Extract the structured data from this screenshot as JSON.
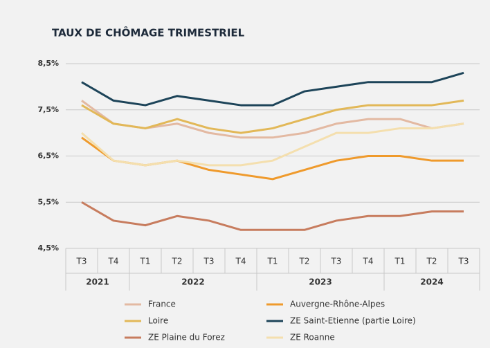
{
  "chart_data": {
    "type": "line",
    "title": "TAUX DE CHÔMAGE TRIMESTRIEL",
    "groups": [
      {
        "label": "2021",
        "categories": [
          "T3",
          "T4"
        ]
      },
      {
        "label": "2022",
        "categories": [
          "T1",
          "T2",
          "T3",
          "T4"
        ]
      },
      {
        "label": "2023",
        "categories": [
          "T1",
          "T2",
          "T3",
          "T4"
        ]
      },
      {
        "label": "2024",
        "categories": [
          "T1",
          "T2",
          "T3"
        ]
      }
    ],
    "ylim": [
      4.5,
      8.5
    ],
    "yticks": [
      {
        "value": 8.5,
        "label": "8,5%"
      },
      {
        "value": 7.5,
        "label": "7,5%"
      },
      {
        "value": 6.5,
        "label": "6,5%"
      },
      {
        "value": 5.5,
        "label": "5,5%"
      },
      {
        "value": 4.5,
        "label": "4,5%"
      }
    ],
    "grid": true,
    "series": [
      {
        "name": "France",
        "color": "#e3b9a2",
        "values": [
          7.7,
          7.2,
          7.1,
          7.2,
          7.0,
          6.9,
          6.9,
          7.0,
          7.2,
          7.3,
          7.3,
          7.1,
          7.2
        ]
      },
      {
        "name": "Auvergne-Rhône-Alpes",
        "color": "#ef9a2c",
        "values": [
          6.9,
          6.4,
          6.3,
          6.4,
          6.2,
          6.1,
          6.0,
          6.2,
          6.4,
          6.5,
          6.5,
          6.4,
          6.4
        ]
      },
      {
        "name": "Loire",
        "color": "#e2b858",
        "values": [
          7.6,
          7.2,
          7.1,
          7.3,
          7.1,
          7.0,
          7.1,
          7.3,
          7.5,
          7.6,
          7.6,
          7.6,
          7.7
        ]
      },
      {
        "name": "ZE Saint-Etienne (partie Loire)",
        "color": "#1d4459",
        "values": [
          8.1,
          7.7,
          7.6,
          7.8,
          7.7,
          7.6,
          7.6,
          7.9,
          8.0,
          8.1,
          8.1,
          8.1,
          8.3
        ]
      },
      {
        "name": "ZE Plaine du Forez",
        "color": "#c77c5e",
        "values": [
          5.5,
          5.1,
          5.0,
          5.2,
          5.1,
          4.9,
          4.9,
          4.9,
          5.1,
          5.2,
          5.2,
          5.3,
          5.3
        ]
      },
      {
        "name": "ZE Roanne",
        "color": "#f4dfae",
        "values": [
          7.0,
          6.4,
          6.3,
          6.4,
          6.3,
          6.3,
          6.4,
          6.7,
          7.0,
          7.0,
          7.1,
          7.1,
          7.2
        ]
      }
    ]
  }
}
